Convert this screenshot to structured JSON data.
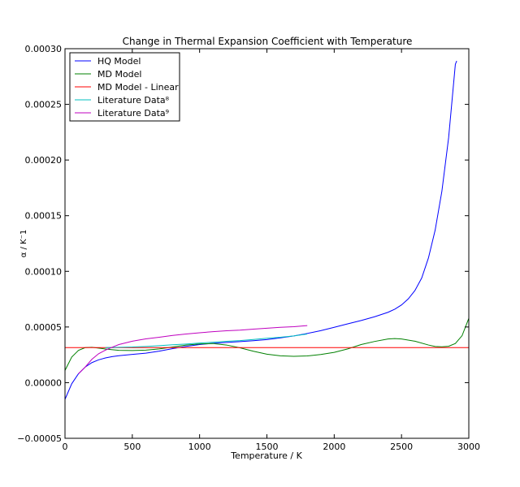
{
  "chart_data": {
    "type": "line",
    "title": "Change in Thermal Expansion Coefficient with Temperature",
    "xlabel": "Temperature / K",
    "ylabel": "α / K⁻1",
    "xlim": [
      0,
      3000
    ],
    "ylim": [
      -5e-05,
      0.0003
    ],
    "xticks": [
      0,
      500,
      1000,
      1500,
      2000,
      2500,
      3000
    ],
    "xtick_labels": [
      "0",
      "500",
      "1000",
      "1500",
      "2000",
      "2500",
      "3000"
    ],
    "yticks": [
      -5e-05,
      0,
      5e-05,
      0.0001,
      0.00015,
      0.0002,
      0.00025,
      0.0003
    ],
    "ytick_labels": [
      "−0.00005",
      "0.00000",
      "0.00005",
      "0.00010",
      "0.00015",
      "0.00020",
      "0.00025",
      "0.00030"
    ],
    "grid": false,
    "legend_position": "top-left",
    "series": [
      {
        "name": "HQ Model",
        "color": "#0000ff",
        "points": [
          [
            0,
            -1.5e-05
          ],
          [
            50,
            -1e-06
          ],
          [
            100,
            8e-06
          ],
          [
            150,
            1.4e-05
          ],
          [
            200,
            1.8e-05
          ],
          [
            250,
            2.05e-05
          ],
          [
            300,
            2.22e-05
          ],
          [
            350,
            2.34e-05
          ],
          [
            400,
            2.42e-05
          ],
          [
            500,
            2.54e-05
          ],
          [
            600,
            2.65e-05
          ],
          [
            700,
            2.83e-05
          ],
          [
            800,
            3.06e-05
          ],
          [
            900,
            3.26e-05
          ],
          [
            1000,
            3.42e-05
          ],
          [
            1100,
            3.53e-05
          ],
          [
            1200,
            3.61e-05
          ],
          [
            1300,
            3.69e-05
          ],
          [
            1400,
            3.77e-05
          ],
          [
            1500,
            3.87e-05
          ],
          [
            1600,
            4.02e-05
          ],
          [
            1700,
            4.2e-05
          ],
          [
            1800,
            4.42e-05
          ],
          [
            1900,
            4.67e-05
          ],
          [
            2000,
            4.97e-05
          ],
          [
            2100,
            5.28e-05
          ],
          [
            2200,
            5.58e-05
          ],
          [
            2300,
            5.92e-05
          ],
          [
            2400,
            6.32e-05
          ],
          [
            2450,
            6.6e-05
          ],
          [
            2500,
            6.98e-05
          ],
          [
            2550,
            7.52e-05
          ],
          [
            2600,
            8.28e-05
          ],
          [
            2650,
            9.4e-05
          ],
          [
            2700,
            0.000112
          ],
          [
            2750,
            0.000137
          ],
          [
            2800,
            0.000172
          ],
          [
            2850,
            0.00022
          ],
          [
            2900,
            0.000286
          ],
          [
            2910,
            0.000289
          ]
        ]
      },
      {
        "name": "MD Model",
        "color": "#008000",
        "points": [
          [
            0,
            1.1e-05
          ],
          [
            50,
            2.3e-05
          ],
          [
            100,
            2.9e-05
          ],
          [
            150,
            3.15e-05
          ],
          [
            200,
            3.18e-05
          ],
          [
            250,
            3.1e-05
          ],
          [
            300,
            3.02e-05
          ],
          [
            400,
            2.9e-05
          ],
          [
            500,
            2.88e-05
          ],
          [
            600,
            2.92e-05
          ],
          [
            700,
            3.03e-05
          ],
          [
            800,
            3.2e-05
          ],
          [
            900,
            3.38e-05
          ],
          [
            1000,
            3.48e-05
          ],
          [
            1100,
            3.51e-05
          ],
          [
            1200,
            3.38e-05
          ],
          [
            1300,
            3.13e-05
          ],
          [
            1400,
            2.82e-05
          ],
          [
            1500,
            2.56e-05
          ],
          [
            1600,
            2.41e-05
          ],
          [
            1700,
            2.36e-05
          ],
          [
            1800,
            2.4e-05
          ],
          [
            1900,
            2.53e-05
          ],
          [
            2000,
            2.72e-05
          ],
          [
            2100,
            3.03e-05
          ],
          [
            2200,
            3.42e-05
          ],
          [
            2300,
            3.7e-05
          ],
          [
            2400,
            3.92e-05
          ],
          [
            2450,
            3.96e-05
          ],
          [
            2500,
            3.92e-05
          ],
          [
            2600,
            3.72e-05
          ],
          [
            2700,
            3.38e-05
          ],
          [
            2750,
            3.25e-05
          ],
          [
            2800,
            3.22e-05
          ],
          [
            2850,
            3.27e-05
          ],
          [
            2900,
            3.52e-05
          ],
          [
            2950,
            4.22e-05
          ],
          [
            3000,
            5.78e-05
          ]
        ]
      },
      {
        "name": "MD Model - Linear",
        "color": "#ff0000",
        "points": [
          [
            0,
            3.15e-05
          ],
          [
            3000,
            3.15e-05
          ]
        ]
      },
      {
        "name": "Literature Data⁸",
        "color": "#00bfbf",
        "points": [
          [
            300,
            3.15e-05
          ],
          [
            400,
            3.18e-05
          ],
          [
            500,
            3.2e-05
          ],
          [
            600,
            3.25e-05
          ],
          [
            700,
            3.32e-05
          ],
          [
            800,
            3.4e-05
          ],
          [
            900,
            3.47e-05
          ],
          [
            1000,
            3.56e-05
          ],
          [
            1100,
            3.63e-05
          ],
          [
            1200,
            3.71e-05
          ],
          [
            1300,
            3.78e-05
          ],
          [
            1400,
            3.88e-05
          ],
          [
            1500,
            3.99e-05
          ],
          [
            1600,
            4.08e-05
          ],
          [
            1700,
            4.2e-05
          ],
          [
            1800,
            4.37e-05
          ]
        ]
      },
      {
        "name": "Literature Data⁹",
        "color": "#bf00bf",
        "points": [
          [
            100,
            8e-06
          ],
          [
            150,
            1.4e-05
          ],
          [
            200,
            2.1e-05
          ],
          [
            250,
            2.6e-05
          ],
          [
            300,
            2.92e-05
          ],
          [
            350,
            3.18e-05
          ],
          [
            400,
            3.42e-05
          ],
          [
            500,
            3.72e-05
          ],
          [
            600,
            3.93e-05
          ],
          [
            700,
            4.08e-05
          ],
          [
            800,
            4.24e-05
          ],
          [
            900,
            4.37e-05
          ],
          [
            1000,
            4.48e-05
          ],
          [
            1100,
            4.58e-05
          ],
          [
            1200,
            4.66e-05
          ],
          [
            1300,
            4.72e-05
          ],
          [
            1400,
            4.81e-05
          ],
          [
            1500,
            4.89e-05
          ],
          [
            1600,
            4.97e-05
          ],
          [
            1700,
            5.03e-05
          ],
          [
            1800,
            5.13e-05
          ]
        ]
      }
    ]
  }
}
